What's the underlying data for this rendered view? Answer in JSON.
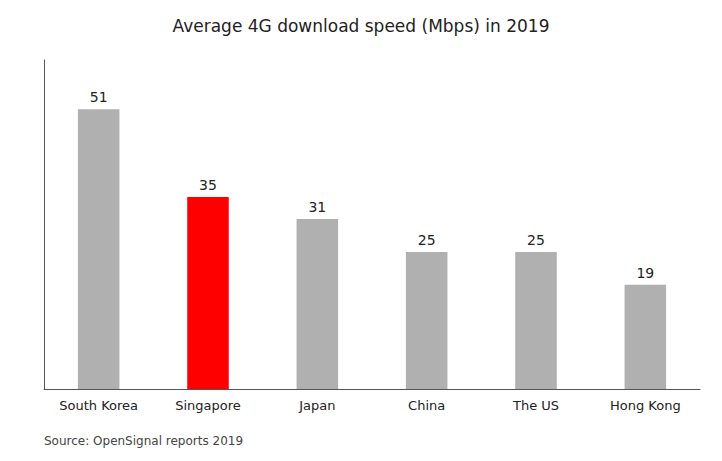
{
  "chart_data": {
    "type": "bar",
    "title": "Average 4G download speed (Mbps) in 2019",
    "categories": [
      "South Korea",
      "Singapore",
      "Japan",
      "China",
      "The US",
      "Hong Kong"
    ],
    "values": [
      51,
      35,
      31,
      25,
      25,
      19
    ],
    "colors": [
      "#b0b0b0",
      "#ff0000",
      "#b0b0b0",
      "#b0b0b0",
      "#b0b0b0",
      "#b0b0b0"
    ],
    "ylim": [
      0,
      60
    ],
    "grid": false,
    "data_labels": true,
    "tick_labels": "x",
    "annotations": [
      "Source: OpenSignal reports 2019"
    ]
  }
}
